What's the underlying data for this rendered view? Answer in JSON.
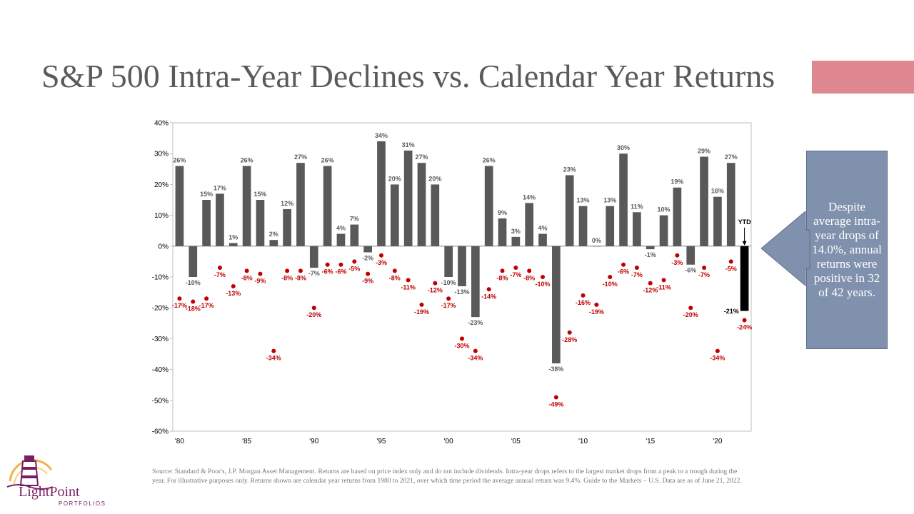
{
  "title": "S&P 500 Intra-Year Declines vs. Calendar Year Returns",
  "callout_text": "Despite average intra-year drops of 14.0%, annual returns were positive in 32 of 42 years.",
  "source_text": "Source: Standard & Poor's, J.P. Morgan Asset Management. Returns are based on price index only and do not include dividends. Intra-year drops refers to the largest market drops from a peak to a trough during the year. For illustrative purposes only. Returns shown are calendar year returns from 1980 to 2021, over which time period the average annual return was 9.4%. Guide to the Markets – U.S. Data are as of June 21, 2022.",
  "logo": {
    "name": "LightPoint",
    "sub": "PORTFOLIOS"
  },
  "colors": {
    "bar": "#595959",
    "ytd_bar": "#000000",
    "drop_dot": "#c00000",
    "accent": "#e0888f",
    "callout": "#8091ad"
  },
  "chart_data": {
    "type": "bar",
    "ylim": [
      -60,
      40
    ],
    "yticks": [
      40,
      30,
      20,
      10,
      0,
      -10,
      -20,
      -30,
      -40,
      -50,
      -60
    ],
    "ytick_labels": [
      "40%",
      "30%",
      "20%",
      "10%",
      "0%",
      "-10%",
      "-20%",
      "-30%",
      "-40%",
      "-50%",
      "-60%"
    ],
    "xtick_labels": [
      {
        "year": 1980,
        "label": "'80"
      },
      {
        "year": 1985,
        "label": "'85"
      },
      {
        "year": 1990,
        "label": "'90"
      },
      {
        "year": 1995,
        "label": "'95"
      },
      {
        "year": 2000,
        "label": "'00"
      },
      {
        "year": 2005,
        "label": "'05"
      },
      {
        "year": 2010,
        "label": "'10"
      },
      {
        "year": 2015,
        "label": "'15"
      },
      {
        "year": 2020,
        "label": "'20"
      }
    ],
    "years": [
      1980,
      1981,
      1982,
      1983,
      1984,
      1985,
      1986,
      1987,
      1988,
      1989,
      1990,
      1991,
      1992,
      1993,
      1994,
      1995,
      1996,
      1997,
      1998,
      1999,
      2000,
      2001,
      2002,
      2003,
      2004,
      2005,
      2006,
      2007,
      2008,
      2009,
      2010,
      2011,
      2012,
      2013,
      2014,
      2015,
      2016,
      2017,
      2018,
      2019,
      2020,
      2021,
      2022
    ],
    "series": [
      {
        "name": "Calendar year return",
        "values": [
          26,
          -10,
          15,
          17,
          1,
          26,
          15,
          2,
          12,
          27,
          -7,
          26,
          4,
          7,
          -2,
          34,
          20,
          31,
          27,
          20,
          -10,
          -13,
          -23,
          26,
          9,
          3,
          14,
          4,
          -38,
          23,
          13,
          0,
          13,
          30,
          11,
          -1,
          10,
          19,
          -6,
          29,
          16,
          27,
          -21
        ],
        "labels": [
          "26%",
          "-10%",
          "15%",
          "17%",
          "1%",
          "26%",
          "15%",
          "2%",
          "12%",
          "27%",
          "-7%",
          "26%",
          "4%",
          "7%",
          "-2%",
          "34%",
          "20%",
          "31%",
          "27%",
          "20%",
          "-10%",
          "-13%",
          "-23%",
          "26%",
          "9%",
          "3%",
          "14%",
          "4%",
          "-38%",
          "23%",
          "13%",
          "0%",
          "13%",
          "30%",
          "11%",
          "-1%",
          "10%",
          "19%",
          "-6%",
          "29%",
          "16%",
          "27%",
          "-21%"
        ]
      },
      {
        "name": "Intra-year drop",
        "values": [
          -17,
          -18,
          -17,
          -7,
          -13,
          -8,
          -9,
          -34,
          -8,
          -8,
          -20,
          -6,
          -6,
          -5,
          -9,
          -3,
          -8,
          -11,
          -19,
          -12,
          -17,
          -30,
          -34,
          -14,
          -8,
          -7,
          -8,
          -10,
          -49,
          -28,
          -16,
          -19,
          -10,
          -6,
          -7,
          -12,
          -11,
          -3,
          -20,
          -7,
          -34,
          -5,
          -24
        ],
        "labels": [
          "-17%",
          "-18%",
          "-17%",
          "-7%",
          "-13%",
          "-8%",
          "-9%",
          "-34%",
          "-8%",
          "-8%",
          "-20%",
          "-6%",
          "-6%",
          "-5%",
          "-9%",
          "-3%",
          "-8%",
          "-11%",
          "-19%",
          "-12%",
          "-17%",
          "-30%",
          "-34%",
          "-14%",
          "-8%",
          "-7%",
          "-8%",
          "-10%",
          "-49%",
          "-28%",
          "-16%",
          "-19%",
          "-10%",
          "-6%",
          "-7%",
          "-12%",
          "-11%",
          "-3%",
          "-20%",
          "-7%",
          "-34%",
          "-5%",
          "-24%"
        ]
      }
    ],
    "ytd_label": "YTD"
  }
}
